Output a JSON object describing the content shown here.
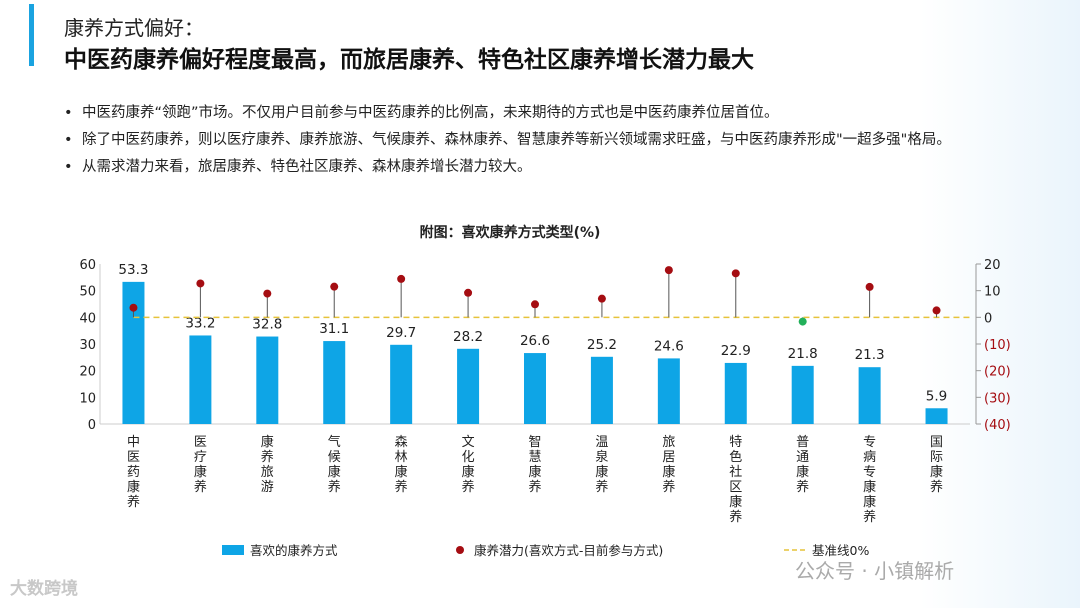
{
  "header": {
    "title": "康养方式偏好：",
    "subtitle": "中医药康养偏好程度最高，而旅居康养、特色社区康养增长潜力最大"
  },
  "bullets": [
    "中医药康养“领跑”市场。不仅用户目前参与中医药康养的比例高，未来期待的方式也是中医药康养位居首位。",
    "除了中医药康养，则以医疗康养、康养旅游、气候康养、森林康养、智慧康养等新兴领域需求旺盛，与中医药康养形成\"一超多强\"格局。",
    "从需求潜力来看，旅居康养、特色社区康养、森林康养增长潜力较大。"
  ],
  "watermarks": {
    "left": "大数跨境",
    "right": "公众号 · 小镇解析"
  },
  "chart_data": {
    "type": "bar+lollipop",
    "title": "附图：喜欢康养方式类型(%)",
    "categories": [
      "中医药康养",
      "医疗康养",
      "康养旅游",
      "气候康养",
      "森林康养",
      "文化康养",
      "智慧康养",
      "温泉康养",
      "旅居康养",
      "特色社区康养",
      "普通康养",
      "专病专康康养",
      "国际康养"
    ],
    "series": [
      {
        "name": "喜欢的康养方式",
        "type": "bar",
        "axis": "left",
        "color": "#0ea5e6",
        "values": [
          53.3,
          33.2,
          32.8,
          31.1,
          29.7,
          28.2,
          26.6,
          25.2,
          24.6,
          22.9,
          21.8,
          21.3,
          5.9
        ]
      },
      {
        "name": "康养潜力(喜欢方式-目前参与方式)",
        "type": "lollipop",
        "axis": "right",
        "color": "#a50d12",
        "negative_color": "#22b05a",
        "values": [
          3.6,
          12.7,
          8.9,
          11.5,
          14.4,
          9.2,
          4.9,
          7.0,
          17.7,
          16.5,
          -1.6,
          11.4,
          2.6
        ]
      },
      {
        "name": "基准线0%",
        "type": "line",
        "axis": "right",
        "color": "#e6c33a",
        "value": 0
      }
    ],
    "left_axis": {
      "range": [
        0,
        60
      ],
      "ticks": [
        "0",
        "10",
        "20",
        "30",
        "40",
        "50",
        "60"
      ]
    },
    "right_axis": {
      "range": [
        -40,
        20
      ],
      "ticks": [
        "(40)",
        "(30)",
        "(20)",
        "(10)",
        "0",
        "10",
        "20"
      ],
      "negative_color": "#a50d12"
    },
    "legend": "bottom",
    "grid": false
  }
}
